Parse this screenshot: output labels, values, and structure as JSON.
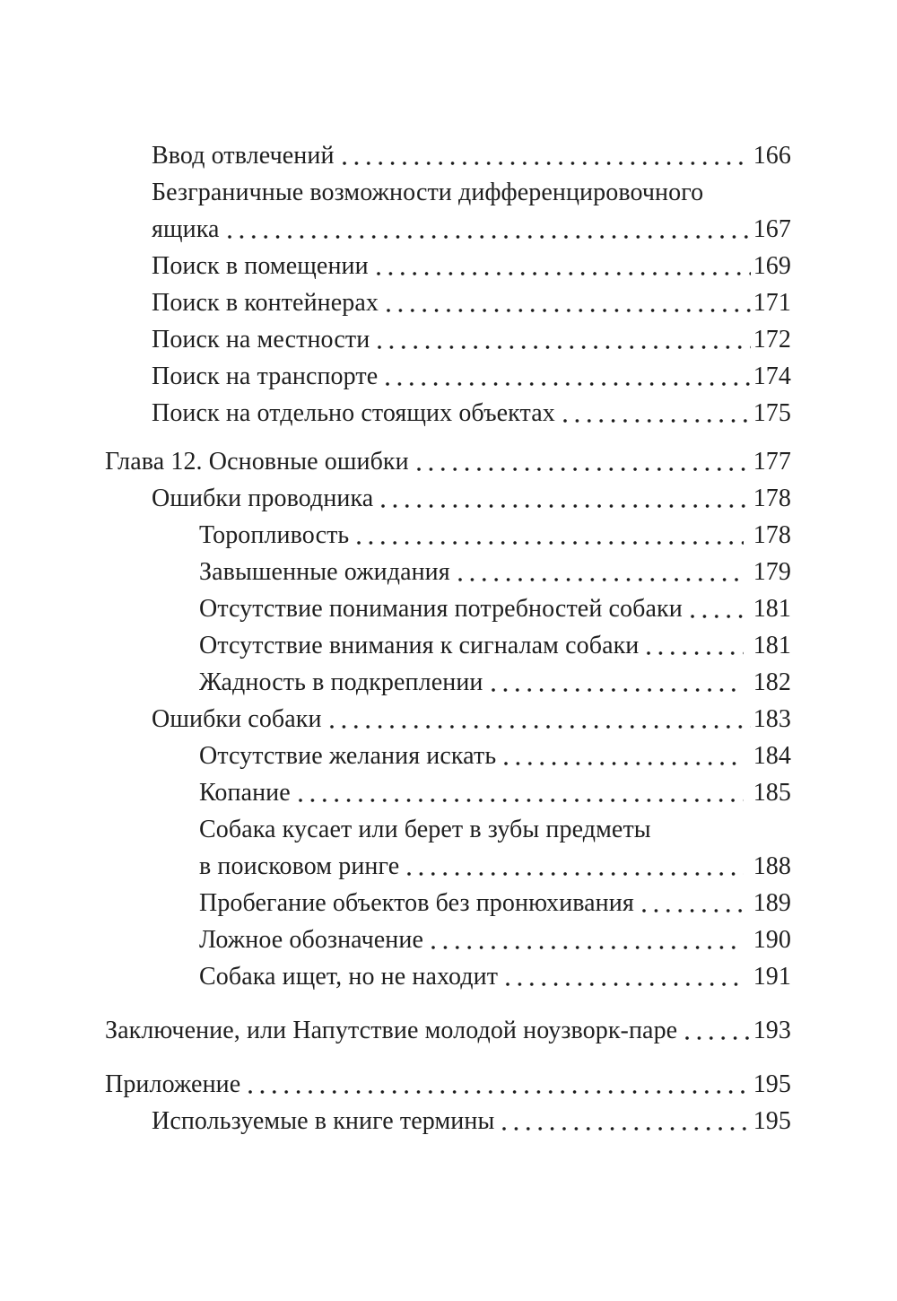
{
  "colors": {
    "background": "#ffffff",
    "text": "#1f1f1f"
  },
  "toc": {
    "entries": [
      {
        "level": 1,
        "lines": [
          {
            "text": "Ввод отвлечений",
            "page": "166"
          }
        ]
      },
      {
        "level": 1,
        "lines": [
          {
            "text": "Безграничные возможности дифференцировочного"
          },
          {
            "text": "ящика",
            "page": "167"
          }
        ]
      },
      {
        "level": 1,
        "lines": [
          {
            "text": "Поиск в помещении",
            "page": "169"
          }
        ]
      },
      {
        "level": 1,
        "lines": [
          {
            "text": "Поиск в контейнерах",
            "page": "171"
          }
        ]
      },
      {
        "level": 1,
        "lines": [
          {
            "text": "Поиск на местности",
            "page": "172"
          }
        ]
      },
      {
        "level": 1,
        "lines": [
          {
            "text": "Поиск на транспорте",
            "page": "174"
          }
        ]
      },
      {
        "level": 1,
        "lines": [
          {
            "text": "Поиск на отдельно стоящих объектах",
            "page": "175"
          }
        ]
      },
      {
        "level": 0,
        "gap": "medium",
        "lines": [
          {
            "text": "Глава 12. Основные ошибки",
            "page": "177"
          }
        ]
      },
      {
        "level": 1,
        "lines": [
          {
            "text": "Ошибки проводника",
            "page": "178"
          }
        ]
      },
      {
        "level": 2,
        "lines": [
          {
            "text": "Торопливость",
            "page": "178"
          }
        ]
      },
      {
        "level": 2,
        "lines": [
          {
            "text": "Завышенные ожидания",
            "page": "179"
          }
        ]
      },
      {
        "level": 2,
        "lines": [
          {
            "text": "Отсутствие понимания потребностей собаки",
            "page": "181"
          }
        ]
      },
      {
        "level": 2,
        "lines": [
          {
            "text": "Отсутствие внимания к сигналам собаки",
            "page": "181"
          }
        ]
      },
      {
        "level": 2,
        "lines": [
          {
            "text": "Жадность в подкреплении",
            "page": "182"
          }
        ]
      },
      {
        "level": 1,
        "lines": [
          {
            "text": "Ошибки собаки",
            "page": "183"
          }
        ]
      },
      {
        "level": 2,
        "lines": [
          {
            "text": "Отсутствие желания искать",
            "page": "184"
          }
        ]
      },
      {
        "level": 2,
        "lines": [
          {
            "text": "Копание",
            "page": "185"
          }
        ]
      },
      {
        "level": 2,
        "lines": [
          {
            "text": "Собака кусает или берет в зубы предметы"
          },
          {
            "text": "в поисковом ринге",
            "page": "188"
          }
        ]
      },
      {
        "level": 2,
        "lines": [
          {
            "text": "Пробегание объектов без пронюхивания",
            "page": "189"
          }
        ]
      },
      {
        "level": 2,
        "lines": [
          {
            "text": "Ложное обозначение",
            "page": "190"
          }
        ]
      },
      {
        "level": 2,
        "lines": [
          {
            "text": "Собака ищет, но не находит",
            "page": "191"
          }
        ]
      },
      {
        "level": 0,
        "gap": "large",
        "lines": [
          {
            "text": "Заключение, или Напутствие молодой ноузворк-паре",
            "page": "193"
          }
        ]
      },
      {
        "level": 0,
        "gap": "large",
        "lines": [
          {
            "text": "Приложение",
            "page": "195"
          }
        ]
      },
      {
        "level": 1,
        "lines": [
          {
            "text": "Используемые в книге термины",
            "page": "195"
          }
        ]
      }
    ]
  }
}
